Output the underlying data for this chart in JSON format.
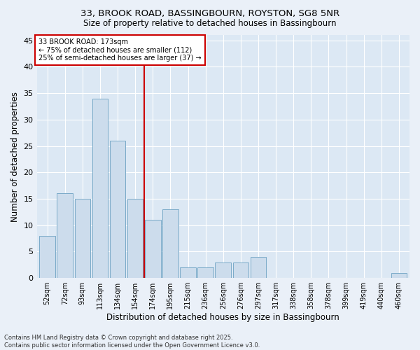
{
  "title1": "33, BROOK ROAD, BASSINGBOURN, ROYSTON, SG8 5NR",
  "title2": "Size of property relative to detached houses in Bassingbourn",
  "xlabel": "Distribution of detached houses by size in Bassingbourn",
  "ylabel": "Number of detached properties",
  "bar_color": "#ccdcec",
  "bar_edge_color": "#7aaac8",
  "bg_color": "#dce8f4",
  "fig_bg_color": "#eaf0f8",
  "categories": [
    "52sqm",
    "72sqm",
    "93sqm",
    "113sqm",
    "134sqm",
    "154sqm",
    "174sqm",
    "195sqm",
    "215sqm",
    "236sqm",
    "256sqm",
    "276sqm",
    "297sqm",
    "317sqm",
    "338sqm",
    "358sqm",
    "378sqm",
    "399sqm",
    "419sqm",
    "440sqm",
    "460sqm"
  ],
  "values": [
    8,
    16,
    15,
    34,
    26,
    15,
    11,
    13,
    2,
    2,
    3,
    3,
    4,
    0,
    0,
    0,
    0,
    0,
    0,
    0,
    1
  ],
  "annotation_line1": "33 BROOK ROAD: 173sqm",
  "annotation_line2": "← 75% of detached houses are smaller (112)",
  "annotation_line3": "25% of semi-detached houses are larger (37) →",
  "annotation_box_color": "#ffffff",
  "annotation_box_edge": "#cc0000",
  "vline_color": "#cc0000",
  "ylim": [
    0,
    46
  ],
  "yticks": [
    0,
    5,
    10,
    15,
    20,
    25,
    30,
    35,
    40,
    45
  ],
  "footer": "Contains HM Land Registry data © Crown copyright and database right 2025.\nContains public sector information licensed under the Open Government Licence v3.0."
}
